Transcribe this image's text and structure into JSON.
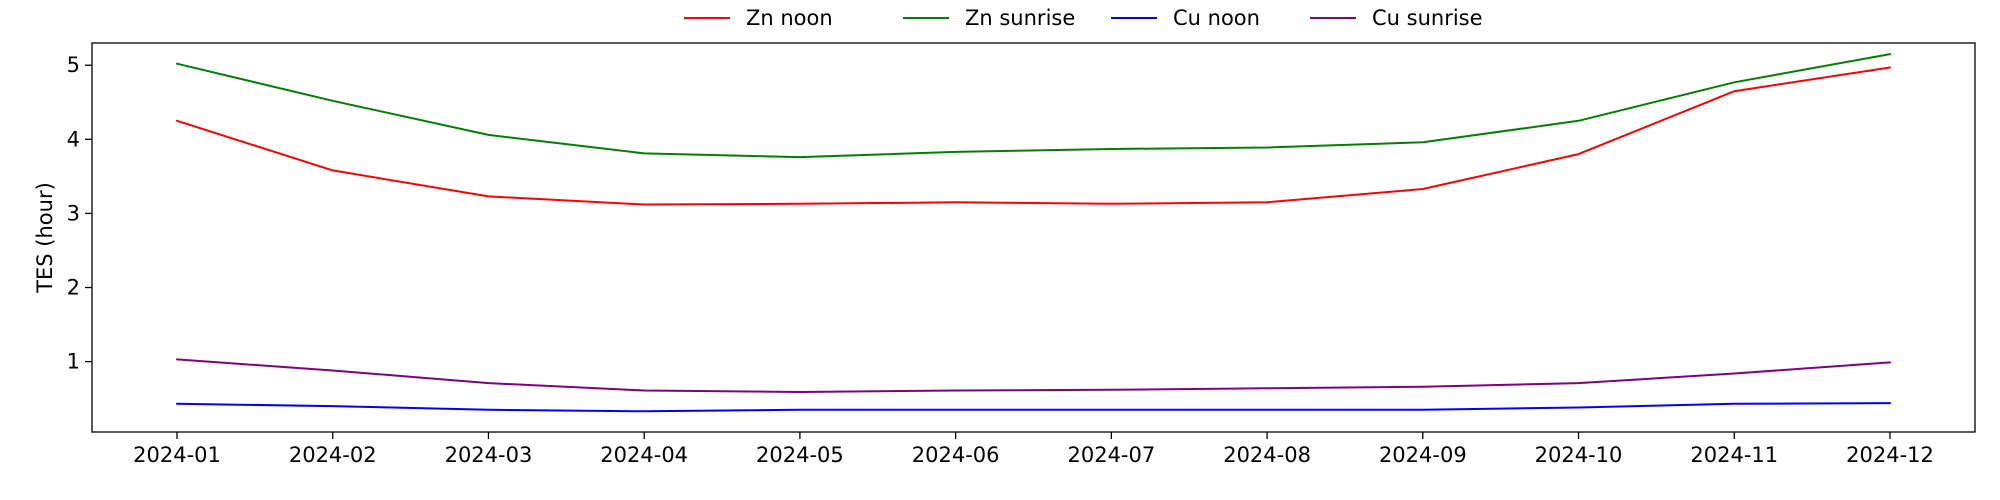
{
  "chart_data": {
    "type": "line",
    "x": [
      "2024-01",
      "2024-02",
      "2024-03",
      "2024-04",
      "2024-05",
      "2024-06",
      "2024-07",
      "2024-08",
      "2024-09",
      "2024-10",
      "2024-11",
      "2024-12"
    ],
    "ylabel": "TES (hour)",
    "ylim": [
      0.05,
      5.3
    ],
    "yticks": [
      1,
      2,
      3,
      4,
      5
    ],
    "grid": false,
    "legend": "top-center",
    "series": [
      {
        "name": "Zn noon",
        "color": "#ff0000",
        "values": [
          4.25,
          3.58,
          3.23,
          3.12,
          3.13,
          3.15,
          3.13,
          3.15,
          3.33,
          3.8,
          4.65,
          4.97
        ]
      },
      {
        "name": "Zn sunrise",
        "color": "#008000",
        "values": [
          5.02,
          4.52,
          4.06,
          3.81,
          3.76,
          3.83,
          3.87,
          3.89,
          3.96,
          4.25,
          4.77,
          5.15
        ]
      },
      {
        "name": "Cu noon",
        "color": "#0000ff",
        "values": [
          0.43,
          0.4,
          0.35,
          0.33,
          0.35,
          0.35,
          0.35,
          0.35,
          0.35,
          0.38,
          0.43,
          0.44
        ]
      },
      {
        "name": "Cu sunrise",
        "color": "#800080",
        "values": [
          1.03,
          0.88,
          0.71,
          0.61,
          0.59,
          0.61,
          0.62,
          0.64,
          0.66,
          0.71,
          0.84,
          0.99
        ]
      }
    ]
  }
}
